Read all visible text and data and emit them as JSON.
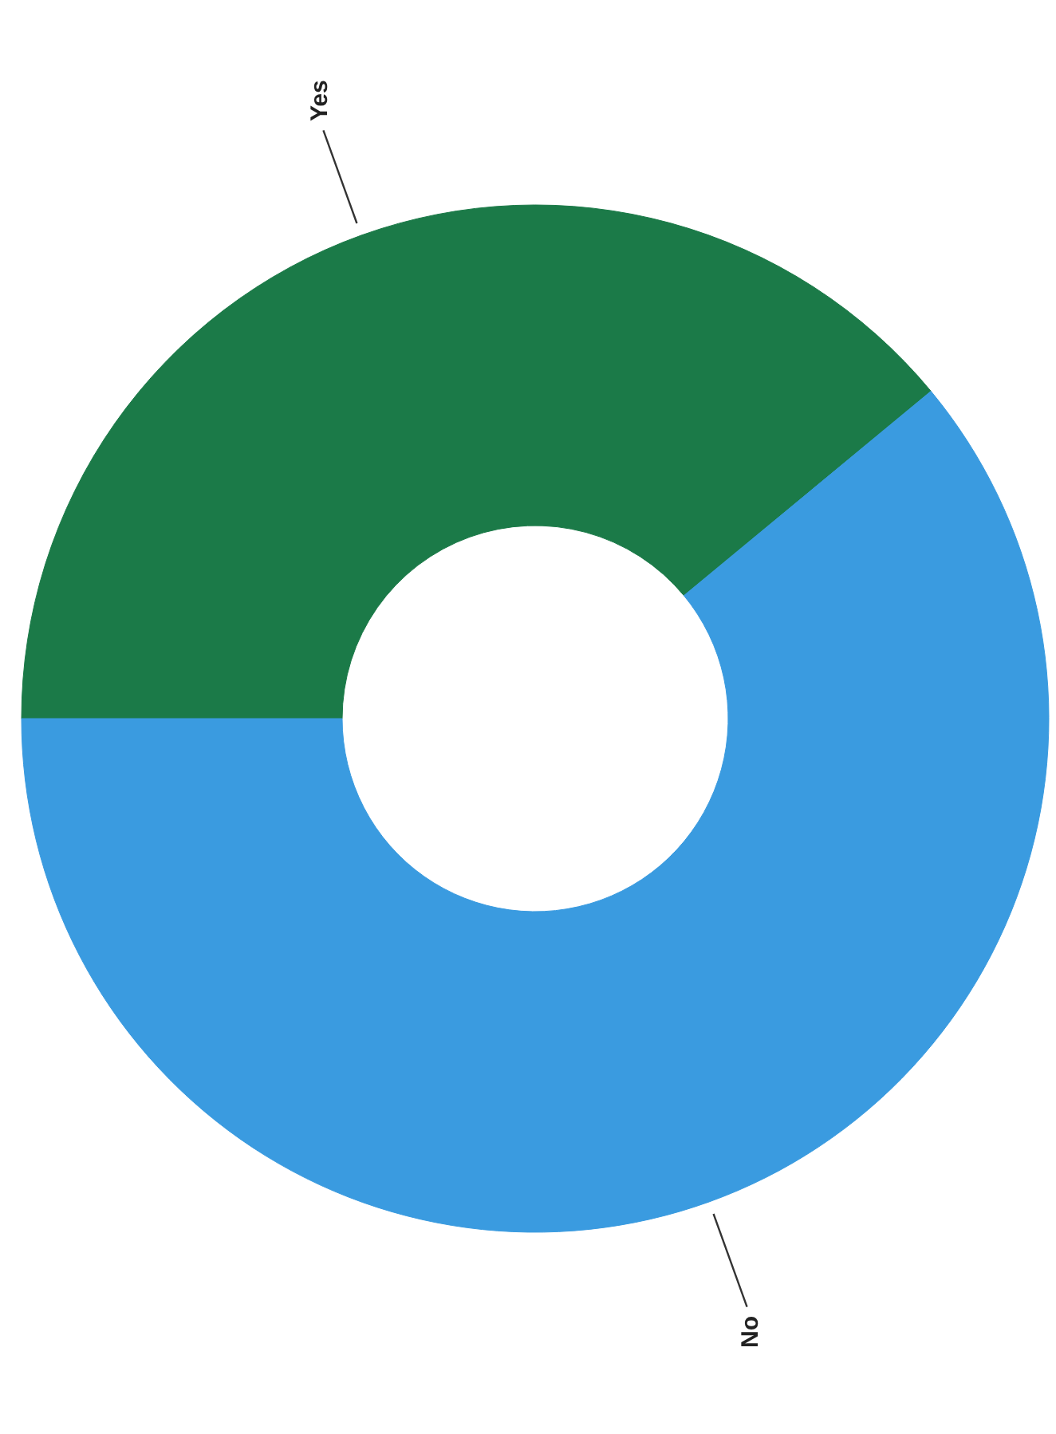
{
  "chart_data": {
    "type": "donut",
    "categories": [
      "Yes",
      "No"
    ],
    "values": [
      39,
      61
    ],
    "colors": [
      "#1b7a48",
      "#3a9be0"
    ]
  }
}
